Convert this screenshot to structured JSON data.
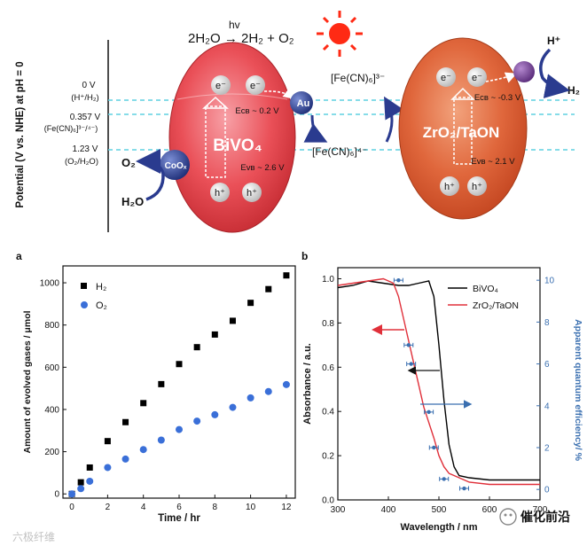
{
  "top": {
    "y_axis_label": "Potential (V vs. NHE) at pH = 0",
    "levels": [
      {
        "v": "0 V",
        "couple": "(H⁺/H₂)"
      },
      {
        "v": "0.357 V",
        "couple": "(Fe(CN)₆]³⁻/⁴⁻)"
      },
      {
        "v": "1.23 V",
        "couple": "(O₂/H₂O)"
      }
    ],
    "reaction": "2H₂O → 2H₂ + O₂",
    "hv": "hv",
    "bivo4": {
      "name": "BiVO₄",
      "ecb": "Eᴄʙ ~ 0.2 V",
      "evb": "Eᴠʙ ~ 2.6 V"
    },
    "zro2": {
      "name": "ZrO₂/TaON",
      "ecb": "Eᴄʙ ~ -0.3 V",
      "evb": "Eᴠʙ ~ 2.1 V"
    },
    "electron": "e⁻",
    "hole": "h⁺",
    "au": "Au",
    "coox": "CoOₓ",
    "fe3": "[Fe(CN)₆]³⁻",
    "fe4": "[Fe(CN)₆]⁴⁻",
    "o2": "O₂",
    "h2o": "H₂O",
    "hplus": "H⁺",
    "h2": "H₂",
    "colors": {
      "bivo4": "#e03a3e",
      "zro2": "#d9582e",
      "dashed": "#5fd0e0",
      "arrow": "#2a3b8f"
    }
  },
  "chart_data": [
    {
      "panel": "a",
      "type": "scatter",
      "xlabel": "Time / hr",
      "ylabel": "Amount of evolved gases / μmol",
      "xlim": [
        -0.5,
        12.5
      ],
      "ylim": [
        -20,
        1080
      ],
      "xticks": [
        0,
        2,
        4,
        6,
        8,
        10,
        12
      ],
      "yticks": [
        0,
        200,
        400,
        600,
        800,
        1000
      ],
      "series": [
        {
          "name": "H₂",
          "marker": "square",
          "color": "#000000",
          "x": [
            0,
            0.5,
            1,
            2,
            3,
            4,
            5,
            6,
            7,
            8,
            9,
            10,
            11,
            12
          ],
          "y": [
            0,
            55,
            125,
            250,
            340,
            430,
            520,
            615,
            695,
            755,
            820,
            905,
            970,
            1035
          ]
        },
        {
          "name": "O₂",
          "marker": "circle",
          "color": "#3a6fd8",
          "x": [
            0,
            0.5,
            1,
            2,
            3,
            4,
            5,
            6,
            7,
            8,
            9,
            10,
            11,
            12
          ],
          "y": [
            0,
            25,
            60,
            125,
            165,
            210,
            255,
            305,
            345,
            375,
            410,
            455,
            485,
            518
          ]
        }
      ]
    },
    {
      "panel": "b",
      "type": "line",
      "xlabel": "Wavelength / nm",
      "ylabel": "Absorbance / a.u.",
      "ylabel_right": "Apparent quantum efficiency/ %",
      "xlim": [
        300,
        700
      ],
      "ylim": [
        0,
        1.05
      ],
      "ylim_right": [
        -0.5,
        10.6
      ],
      "xticks": [
        300,
        400,
        500,
        600,
        700
      ],
      "yticks": [
        "0.0",
        "0.2",
        "0.4",
        "0.6",
        "0.8",
        "1.0"
      ],
      "yticks_right": [
        0,
        2,
        4,
        6,
        8,
        10
      ],
      "series": [
        {
          "name": "BiVO₄",
          "color": "#000000",
          "x": [
            300,
            330,
            360,
            390,
            420,
            440,
            460,
            480,
            490,
            500,
            510,
            520,
            530,
            540,
            560,
            600,
            650,
            700
          ],
          "y": [
            0.96,
            0.97,
            0.99,
            0.98,
            0.97,
            0.97,
            0.98,
            0.99,
            0.92,
            0.7,
            0.45,
            0.25,
            0.15,
            0.11,
            0.1,
            0.09,
            0.09,
            0.09
          ]
        },
        {
          "name": "ZrO₂/TaON",
          "color": "#e0303a",
          "x": [
            300,
            330,
            360,
            390,
            410,
            420,
            430,
            440,
            450,
            460,
            470,
            480,
            490,
            500,
            510,
            520,
            540,
            560,
            600,
            650,
            700
          ],
          "y": [
            0.97,
            0.98,
            0.99,
            1.0,
            0.98,
            0.92,
            0.82,
            0.72,
            0.62,
            0.52,
            0.42,
            0.35,
            0.28,
            0.2,
            0.15,
            0.12,
            0.1,
            0.08,
            0.07,
            0.07,
            0.07
          ]
        }
      ],
      "qe_points": [
        {
          "x": 420,
          "y": 10.0
        },
        {
          "x": 440,
          "y": 6.9
        },
        {
          "x": 445,
          "y": 6.0
        },
        {
          "x": 480,
          "y": 3.7
        },
        {
          "x": 490,
          "y": 2.0
        },
        {
          "x": 510,
          "y": 0.5
        },
        {
          "x": 550,
          "y": 0.05
        }
      ]
    }
  ],
  "panel_labels": {
    "a": "a",
    "b": "b"
  },
  "watermark_left": "六极纤维",
  "watermark_right": "催化前沿"
}
